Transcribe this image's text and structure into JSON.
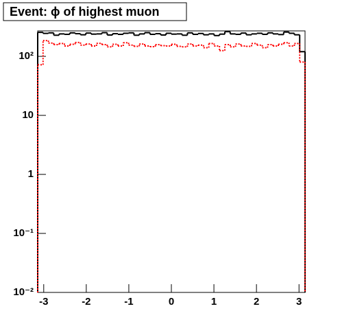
{
  "chart_data": {
    "type": "histogram",
    "title": "Event: ϕ of highest muon",
    "bins": [
      -3.1416,
      -3.0159,
      -2.8903,
      -2.7646,
      -2.6389,
      -2.5133,
      -2.3876,
      -2.2619,
      -2.1363,
      -2.0106,
      -1.885,
      -1.7593,
      -1.6336,
      -1.508,
      -1.3823,
      -1.2566,
      -1.131,
      -1.0053,
      -0.8796,
      -0.754,
      -0.6283,
      -0.5027,
      -0.377,
      -0.2513,
      -0.1257,
      0,
      0.1257,
      0.2513,
      0.377,
      0.5027,
      0.6283,
      0.754,
      0.8796,
      1.0053,
      1.131,
      1.2566,
      1.3823,
      1.508,
      1.6336,
      1.7593,
      1.885,
      2.0106,
      2.1363,
      2.2619,
      2.3876,
      2.5133,
      2.6389,
      2.7646,
      2.8903,
      3.0159,
      3.1416
    ],
    "series": [
      {
        "color": "#000000",
        "line_style": "solid",
        "values": [
          255,
          245,
          250,
          228,
          240,
          236,
          250,
          242,
          232,
          248,
          238,
          240,
          252,
          230,
          242,
          236,
          246,
          250,
          228,
          240,
          252,
          236,
          242,
          230,
          246,
          238,
          240,
          228,
          250,
          236,
          244,
          232,
          240,
          225,
          238,
          262,
          240,
          236,
          248,
          232,
          240,
          246,
          236,
          250,
          240,
          234,
          258,
          246,
          232,
          120
        ]
      },
      {
        "color": "#ff0000",
        "line_style": "dotted",
        "values": [
          72,
          185,
          168,
          158,
          165,
          150,
          160,
          172,
          155,
          162,
          150,
          166,
          158,
          145,
          160,
          150,
          170,
          155,
          148,
          162,
          150,
          146,
          158,
          152,
          150,
          160,
          148,
          145,
          162,
          150,
          155,
          140,
          165,
          150,
          125,
          158,
          145,
          162,
          150,
          148,
          165,
          155,
          140,
          158,
          150,
          160,
          170,
          150,
          165,
          80
        ]
      }
    ],
    "xlim": [
      -3.1416,
      3.1416
    ],
    "xticks": [
      -3,
      -2,
      -1,
      0,
      1,
      2,
      3
    ],
    "ylim": [
      0.01,
      270
    ],
    "log_y": true,
    "yticks": [
      {
        "value": 0.01,
        "label": "10⁻²"
      },
      {
        "value": 0.1,
        "label": "10⁻¹"
      },
      1,
      10,
      {
        "value": 100,
        "label": "10²"
      }
    ]
  }
}
